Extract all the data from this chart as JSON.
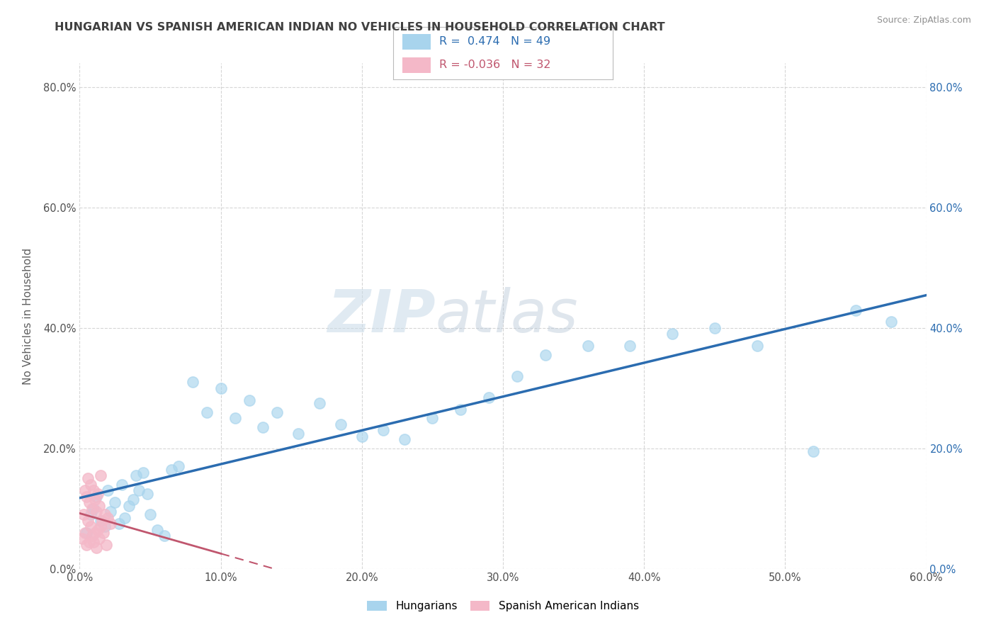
{
  "title": "HUNGARIAN VS SPANISH AMERICAN INDIAN NO VEHICLES IN HOUSEHOLD CORRELATION CHART",
  "source": "Source: ZipAtlas.com",
  "xlabel": "",
  "ylabel": "No Vehicles in Household",
  "watermark_zip": "ZIP",
  "watermark_atlas": "atlas",
  "xlim": [
    0.0,
    0.6
  ],
  "ylim": [
    0.0,
    0.84
  ],
  "xticks": [
    0.0,
    0.1,
    0.2,
    0.3,
    0.4,
    0.5,
    0.6
  ],
  "xtick_labels": [
    "0.0%",
    "10.0%",
    "20.0%",
    "30.0%",
    "40.0%",
    "50.0%",
    "60.0%"
  ],
  "ytick_labels": [
    "0.0%",
    "20.0%",
    "40.0%",
    "60.0%",
    "80.0%"
  ],
  "yticks": [
    0.0,
    0.2,
    0.4,
    0.6,
    0.8
  ],
  "legend_R_hungarian": "0.474",
  "legend_N_hungarian": "49",
  "legend_R_spanish": "-0.036",
  "legend_N_spanish": "32",
  "hungarian_color": "#a8d4ed",
  "spanish_color": "#f4b8c8",
  "hungarian_line_color": "#2b6cb0",
  "spanish_line_color": "#c0566e",
  "hungarian_x": [
    0.005,
    0.008,
    0.01,
    0.012,
    0.015,
    0.018,
    0.02,
    0.022,
    0.025,
    0.028,
    0.03,
    0.032,
    0.035,
    0.038,
    0.04,
    0.042,
    0.045,
    0.048,
    0.05,
    0.055,
    0.06,
    0.065,
    0.07,
    0.08,
    0.09,
    0.1,
    0.11,
    0.12,
    0.13,
    0.14,
    0.155,
    0.17,
    0.185,
    0.2,
    0.215,
    0.23,
    0.25,
    0.27,
    0.29,
    0.31,
    0.33,
    0.36,
    0.39,
    0.42,
    0.45,
    0.48,
    0.52,
    0.55,
    0.575
  ],
  "hungarian_y": [
    0.06,
    0.09,
    0.1,
    0.12,
    0.08,
    0.07,
    0.13,
    0.095,
    0.11,
    0.075,
    0.14,
    0.085,
    0.105,
    0.115,
    0.155,
    0.13,
    0.16,
    0.125,
    0.09,
    0.065,
    0.055,
    0.165,
    0.17,
    0.31,
    0.26,
    0.3,
    0.25,
    0.28,
    0.235,
    0.26,
    0.225,
    0.275,
    0.24,
    0.22,
    0.23,
    0.215,
    0.25,
    0.265,
    0.285,
    0.32,
    0.355,
    0.37,
    0.37,
    0.39,
    0.4,
    0.37,
    0.195,
    0.43,
    0.41
  ],
  "spanish_x": [
    0.002,
    0.003,
    0.004,
    0.004,
    0.005,
    0.005,
    0.006,
    0.006,
    0.007,
    0.007,
    0.008,
    0.008,
    0.009,
    0.009,
    0.01,
    0.01,
    0.011,
    0.011,
    0.012,
    0.012,
    0.013,
    0.013,
    0.014,
    0.014,
    0.015,
    0.015,
    0.016,
    0.017,
    0.018,
    0.019,
    0.02,
    0.022
  ],
  "spanish_y": [
    0.05,
    0.09,
    0.06,
    0.13,
    0.04,
    0.12,
    0.08,
    0.15,
    0.045,
    0.11,
    0.07,
    0.14,
    0.055,
    0.1,
    0.045,
    0.13,
    0.06,
    0.115,
    0.035,
    0.095,
    0.065,
    0.125,
    0.05,
    0.105,
    0.07,
    0.155,
    0.08,
    0.06,
    0.09,
    0.04,
    0.085,
    0.075
  ],
  "background_color": "#ffffff",
  "plot_bg_color": "#ffffff",
  "grid_color": "#cccccc",
  "title_color": "#404040",
  "axis_label_color": "#606060"
}
